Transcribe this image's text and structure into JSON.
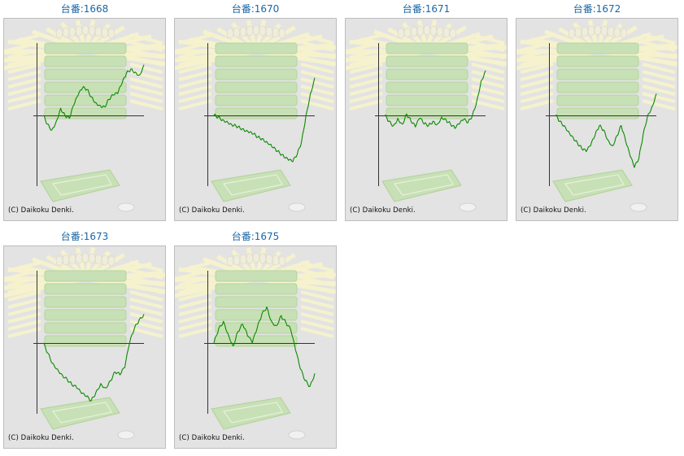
{
  "copyright": "(C) Daikoku Denki.",
  "colors": {
    "title": "#1a66a6",
    "line": "#0a8a00",
    "axis": "#333333",
    "panel": "#e3e3e3",
    "watermark_green": "#bfe0a6",
    "watermark_yellow": "#fbf7c6"
  },
  "chart_data": [
    {
      "type": "line",
      "title": "台番:1668",
      "ylim": [
        -100,
        100
      ],
      "y": [
        0,
        -12,
        -20,
        -8,
        10,
        0,
        -4,
        14,
        28,
        38,
        36,
        26,
        18,
        14,
        12,
        22,
        28,
        30,
        44,
        58,
        64,
        60,
        56,
        70
      ]
    },
    {
      "type": "line",
      "title": "台番:1670",
      "ylim": [
        -100,
        100
      ],
      "y": [
        0,
        -2,
        -6,
        -8,
        -12,
        -14,
        -18,
        -22,
        -24,
        -26,
        -30,
        -32,
        -36,
        -40,
        -46,
        -52,
        -58,
        -62,
        -64,
        -54,
        -36,
        0,
        30,
        52
      ]
    },
    {
      "type": "line",
      "title": "台番:1671",
      "ylim": [
        -100,
        100
      ],
      "y": [
        0,
        -8,
        -14,
        -4,
        -12,
        2,
        -8,
        -16,
        -4,
        -12,
        -14,
        -8,
        -12,
        -2,
        -6,
        -12,
        -18,
        -12,
        -6,
        -10,
        0,
        20,
        48,
        62
      ]
    },
    {
      "type": "line",
      "title": "台番:1672",
      "ylim": [
        -100,
        100
      ],
      "y": [
        0,
        -8,
        -14,
        -22,
        -30,
        -38,
        -46,
        -50,
        -42,
        -28,
        -14,
        -20,
        -34,
        -42,
        -28,
        -14,
        -36,
        -56,
        -72,
        -60,
        -26,
        0,
        12,
        30
      ]
    },
    {
      "type": "line",
      "title": "台番:1673",
      "ylim": [
        -100,
        100
      ],
      "y": [
        0,
        -14,
        -28,
        -36,
        -44,
        -50,
        -58,
        -62,
        -70,
        -74,
        -80,
        -68,
        -56,
        -62,
        -52,
        -40,
        -44,
        -34,
        0,
        20,
        32,
        40
      ]
    },
    {
      "type": "line",
      "title": "台番:1675",
      "ylim": [
        -100,
        100
      ],
      "y": [
        0,
        20,
        30,
        12,
        -4,
        16,
        26,
        10,
        0,
        20,
        40,
        50,
        30,
        24,
        38,
        28,
        18,
        -10,
        -36,
        -52,
        -60,
        -42
      ]
    }
  ]
}
